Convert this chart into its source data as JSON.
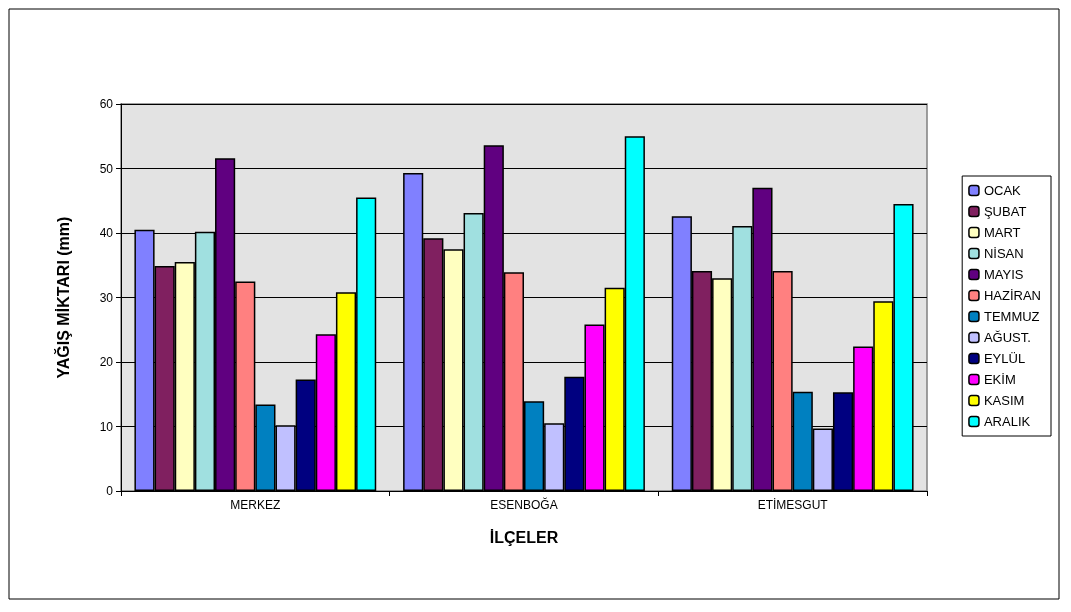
{
  "chart_data": {
    "type": "bar",
    "xlabel": "İLÇELER",
    "ylabel": "YAĞIŞ MİKTARI (mm)",
    "categories": [
      "MERKEZ",
      "ESENBOĞA",
      "ETİMESGUT"
    ],
    "ylim": [
      0,
      60
    ],
    "yticks": [
      0,
      10,
      20,
      30,
      40,
      50,
      60
    ],
    "grid": "y",
    "legend": "right",
    "series": [
      {
        "name": "OCAK",
        "color": "#8080ff",
        "values": [
          40.5,
          49.3,
          42.6
        ]
      },
      {
        "name": "ŞUBAT",
        "color": "#802060",
        "values": [
          34.9,
          39.2,
          34.1
        ]
      },
      {
        "name": "MART",
        "color": "#ffffc0",
        "values": [
          35.5,
          37.5,
          33.0
        ]
      },
      {
        "name": "NİSAN",
        "color": "#a0e0e0",
        "values": [
          40.2,
          43.1,
          41.1
        ]
      },
      {
        "name": "MAYIS",
        "color": "#600080",
        "values": [
          51.6,
          53.6,
          47.0
        ]
      },
      {
        "name": "HAZİRAN",
        "color": "#ff8080",
        "values": [
          32.5,
          33.9,
          34.1
        ]
      },
      {
        "name": "TEMMUZ",
        "color": "#0080c0",
        "values": [
          13.4,
          13.9,
          15.4
        ]
      },
      {
        "name": "AĞUST.",
        "color": "#c0c0ff",
        "values": [
          10.2,
          10.5,
          9.7
        ]
      },
      {
        "name": "EYLÜL",
        "color": "#000080",
        "values": [
          17.3,
          17.7,
          15.3
        ]
      },
      {
        "name": "EKİM",
        "color": "#ff00ff",
        "values": [
          24.3,
          25.8,
          22.4
        ]
      },
      {
        "name": "KASIM",
        "color": "#ffff00",
        "values": [
          30.8,
          31.5,
          29.4
        ]
      },
      {
        "name": "ARALIK",
        "color": "#00ffff",
        "values": [
          45.5,
          55.0,
          44.5
        ]
      }
    ]
  }
}
